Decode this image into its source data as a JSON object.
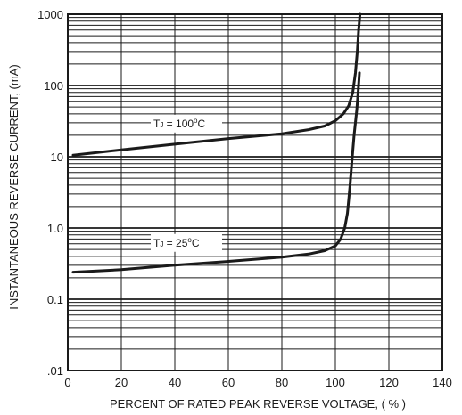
{
  "chart_data": {
    "type": "line",
    "title": "",
    "xlabel": "PERCENT OF RATED PEAK REVERSE VOLTAGE, ( % )",
    "ylabel": "INSTANTANEOUS REVERSE CURRENT, (mA)",
    "xlim": [
      0,
      140
    ],
    "ylim": [
      0.01,
      1000
    ],
    "yscale": "log",
    "grid": true,
    "x_ticks": [
      0,
      20,
      40,
      60,
      80,
      100,
      120,
      140
    ],
    "y_ticks": [
      {
        "value": 0.01,
        "label": ".01"
      },
      {
        "value": 0.1,
        "label": "0.1"
      },
      {
        "value": 1,
        "label": "1.0"
      },
      {
        "value": 10,
        "label": "10"
      },
      {
        "value": 100,
        "label": "100"
      },
      {
        "value": 1000,
        "label": "1000"
      }
    ],
    "series": [
      {
        "name": "TJ = 100°C",
        "label_parts": {
          "main": "T",
          "sub": "J",
          "eq": " = 100",
          "sup": "o",
          "unit": "C"
        },
        "label_anchor": [
          32,
          26
        ],
        "x": [
          2,
          20,
          40,
          60,
          80,
          90,
          96,
          100,
          103,
          105,
          106.5,
          107.5,
          108.2,
          108.7,
          109.2
        ],
        "y": [
          10.5,
          12.5,
          15,
          18,
          21,
          24,
          27,
          32,
          40,
          52,
          80,
          150,
          300,
          600,
          1000
        ]
      },
      {
        "name": "TJ = 25°C",
        "label_parts": {
          "main": "T",
          "sub": "J",
          "eq": " = 25",
          "sup": "o",
          "unit": "C"
        },
        "label_anchor": [
          32,
          0.55
        ],
        "x": [
          2,
          20,
          40,
          60,
          80,
          90,
          96,
          100,
          102,
          103.5,
          104.5,
          105,
          105.5,
          106,
          106.5,
          107,
          107.5,
          108,
          108.5,
          109
        ],
        "y": [
          0.24,
          0.26,
          0.3,
          0.34,
          0.39,
          0.43,
          0.48,
          0.56,
          0.7,
          1.0,
          1.6,
          2.5,
          4,
          7,
          12,
          20,
          30,
          45,
          80,
          150
        ]
      }
    ]
  }
}
